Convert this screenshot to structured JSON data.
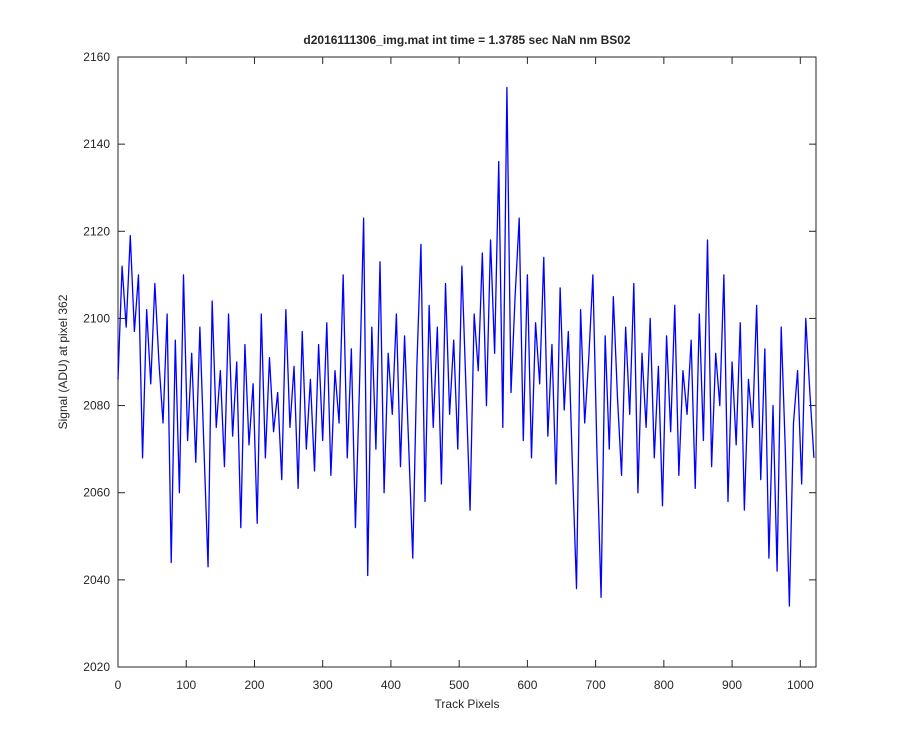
{
  "chart_data": {
    "type": "line",
    "title": "d2016111306_img.mat int time = 1.3785 sec  NaN nm BS02",
    "x_label": "Track Pixels",
    "y_label": "Signal (ADU) at pixel 362",
    "color": "#0000ff",
    "xlim": [
      0,
      1023
    ],
    "ylim": [
      2020,
      2160
    ],
    "xticks": [
      0,
      100,
      200,
      300,
      400,
      500,
      600,
      700,
      800,
      900,
      1000
    ],
    "yticks": [
      2020,
      2040,
      2060,
      2080,
      2100,
      2120,
      2140,
      2160
    ],
    "x": [
      0,
      6,
      12,
      18,
      24,
      30,
      36,
      42,
      48,
      54,
      60,
      66,
      72,
      78,
      84,
      90,
      96,
      102,
      108,
      114,
      120,
      126,
      132,
      138,
      144,
      150,
      156,
      162,
      168,
      174,
      180,
      186,
      192,
      198,
      204,
      210,
      216,
      222,
      228,
      234,
      240,
      246,
      252,
      258,
      264,
      270,
      276,
      282,
      288,
      294,
      300,
      306,
      312,
      318,
      324,
      330,
      336,
      342,
      348,
      354,
      360,
      366,
      372,
      378,
      384,
      390,
      396,
      402,
      408,
      414,
      420,
      426,
      432,
      438,
      444,
      450,
      456,
      462,
      468,
      474,
      480,
      486,
      492,
      498,
      504,
      510,
      516,
      522,
      528,
      534,
      540,
      546,
      552,
      558,
      564,
      570,
      576,
      582,
      588,
      594,
      600,
      606,
      612,
      618,
      624,
      630,
      636,
      642,
      648,
      654,
      660,
      666,
      672,
      678,
      684,
      690,
      696,
      702,
      708,
      714,
      720,
      726,
      732,
      738,
      744,
      750,
      756,
      762,
      768,
      774,
      780,
      786,
      792,
      798,
      804,
      810,
      816,
      822,
      828,
      834,
      840,
      846,
      852,
      858,
      864,
      870,
      876,
      882,
      888,
      894,
      900,
      906,
      912,
      918,
      924,
      930,
      936,
      942,
      948,
      954,
      960,
      966,
      972,
      978,
      984,
      990,
      996,
      1002,
      1008,
      1014,
      1020
    ],
    "values": [
      2086,
      2112,
      2098,
      2119,
      2097,
      2110,
      2068,
      2102,
      2085,
      2108,
      2090,
      2076,
      2101,
      2044,
      2095,
      2060,
      2110,
      2072,
      2092,
      2067,
      2098,
      2070,
      2043,
      2104,
      2075,
      2088,
      2066,
      2101,
      2073,
      2090,
      2052,
      2094,
      2071,
      2085,
      2053,
      2101,
      2068,
      2091,
      2074,
      2083,
      2063,
      2102,
      2075,
      2089,
      2061,
      2097,
      2070,
      2086,
      2065,
      2094,
      2072,
      2099,
      2064,
      2088,
      2076,
      2110,
      2068,
      2093,
      2052,
      2085,
      2123,
      2041,
      2098,
      2070,
      2113,
      2060,
      2092,
      2078,
      2101,
      2066,
      2096,
      2071,
      2045,
      2089,
      2117,
      2058,
      2103,
      2075,
      2098,
      2062,
      2108,
      2078,
      2095,
      2070,
      2112,
      2084,
      2056,
      2101,
      2088,
      2115,
      2080,
      2118,
      2092,
      2136,
      2075,
      2153,
      2083,
      2105,
      2123,
      2072,
      2110,
      2068,
      2099,
      2085,
      2114,
      2073,
      2094,
      2062,
      2107,
      2079,
      2097,
      2066,
      2038,
      2102,
      2076,
      2091,
      2110,
      2069,
      2036,
      2096,
      2070,
      2105,
      2082,
      2064,
      2098,
      2078,
      2108,
      2060,
      2092,
      2075,
      2100,
      2068,
      2089,
      2057,
      2096,
      2074,
      2103,
      2064,
      2088,
      2078,
      2095,
      2061,
      2101,
      2072,
      2118,
      2066,
      2092,
      2080,
      2110,
      2058,
      2090,
      2071,
      2099,
      2056,
      2086,
      2075,
      2103,
      2063,
      2093,
      2045,
      2080,
      2042,
      2098,
      2070,
      2034,
      2076,
      2088,
      2062,
      2100,
      2083,
      2068
    ]
  }
}
